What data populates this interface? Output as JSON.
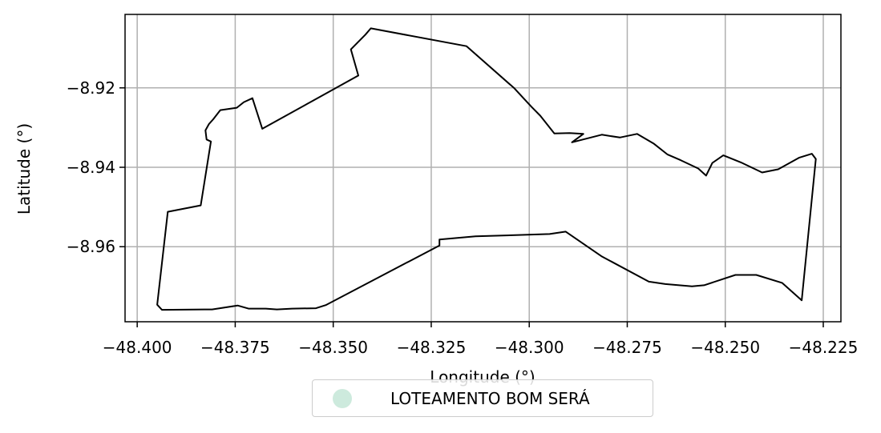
{
  "chart_data": {
    "type": "map",
    "title": "",
    "xlabel": "Longitude (°)",
    "ylabel": "Latitude (°)",
    "xlim": [
      -48.4031,
      -48.2205
    ],
    "ylim": [
      -8.9789,
      -8.9015
    ],
    "xticks": [
      -48.4,
      -48.375,
      -48.35,
      -48.325,
      -48.3,
      -48.275,
      -48.25,
      -48.225
    ],
    "xtick_labels": [
      "−48.400",
      "−48.375",
      "−48.350",
      "−48.325",
      "−48.300",
      "−48.275",
      "−48.250",
      "−48.225"
    ],
    "yticks": [
      -8.92,
      -8.94,
      -8.96
    ],
    "ytick_labels": [
      "−8.92",
      "−8.94",
      "−8.96"
    ],
    "grid": true,
    "legend_placement": "bottom-center",
    "legend": [
      {
        "label": "LOTEAMENTO BOM SERÁ",
        "color": "#cdeadd"
      }
    ],
    "boundary_color": "#000000",
    "boundary": [
      [
        -48.3949,
        -8.9746
      ],
      [
        -48.3937,
        -8.9759
      ],
      [
        -48.3809,
        -8.9758
      ],
      [
        -48.3744,
        -8.9748
      ],
      [
        -48.3716,
        -8.9756
      ],
      [
        -48.3672,
        -8.9756
      ],
      [
        -48.3644,
        -8.9758
      ],
      [
        -48.3605,
        -8.9756
      ],
      [
        -48.3544,
        -8.9755
      ],
      [
        -48.3519,
        -8.9747
      ],
      [
        -48.3229,
        -8.9597
      ],
      [
        -48.3229,
        -8.9582
      ],
      [
        -48.3137,
        -8.9574
      ],
      [
        -48.2948,
        -8.9568
      ],
      [
        -48.2907,
        -8.9562
      ],
      [
        -48.2816,
        -8.9624
      ],
      [
        -48.2695,
        -8.9688
      ],
      [
        -48.2653,
        -8.9694
      ],
      [
        -48.2585,
        -8.97
      ],
      [
        -48.2554,
        -8.9697
      ],
      [
        -48.2474,
        -8.9671
      ],
      [
        -48.2421,
        -8.9671
      ],
      [
        -48.2355,
        -8.9691
      ],
      [
        -48.2305,
        -8.9735
      ],
      [
        -48.2269,
        -8.9379
      ],
      [
        -48.2279,
        -8.9366
      ],
      [
        -48.2312,
        -8.9376
      ],
      [
        -48.2365,
        -8.9405
      ],
      [
        -48.2406,
        -8.9413
      ],
      [
        -48.2457,
        -8.9389
      ],
      [
        -48.2505,
        -8.937
      ],
      [
        -48.2533,
        -8.9389
      ],
      [
        -48.2549,
        -8.9421
      ],
      [
        -48.2569,
        -8.9403
      ],
      [
        -48.2614,
        -8.9382
      ],
      [
        -48.2647,
        -8.9368
      ],
      [
        -48.2683,
        -8.934
      ],
      [
        -48.2725,
        -8.9316
      ],
      [
        -48.2769,
        -8.9325
      ],
      [
        -48.2815,
        -8.9318
      ],
      [
        -48.2891,
        -8.9337
      ],
      [
        -48.2862,
        -8.9316
      ],
      [
        -48.2897,
        -8.9314
      ],
      [
        -48.2936,
        -8.9315
      ],
      [
        -48.2972,
        -8.927
      ],
      [
        -48.2994,
        -8.9248
      ],
      [
        -48.3038,
        -8.9201
      ],
      [
        -48.316,
        -8.9095
      ],
      [
        -48.3404,
        -8.905
      ],
      [
        -48.3418,
        -8.9066
      ],
      [
        -48.3455,
        -8.9103
      ],
      [
        -48.3436,
        -8.9169
      ],
      [
        -48.3681,
        -8.9303
      ],
      [
        -48.3706,
        -8.9226
      ],
      [
        -48.3728,
        -8.9236
      ],
      [
        -48.3746,
        -8.925
      ],
      [
        -48.3788,
        -8.9256
      ],
      [
        -48.3806,
        -8.9279
      ],
      [
        -48.3817,
        -8.9291
      ],
      [
        -48.3826,
        -8.9307
      ],
      [
        -48.3823,
        -8.933
      ],
      [
        -48.3812,
        -8.9335
      ],
      [
        -48.3838,
        -8.9496
      ],
      [
        -48.3922,
        -8.9512
      ],
      [
        -48.3949,
        -8.9746
      ]
    ]
  }
}
